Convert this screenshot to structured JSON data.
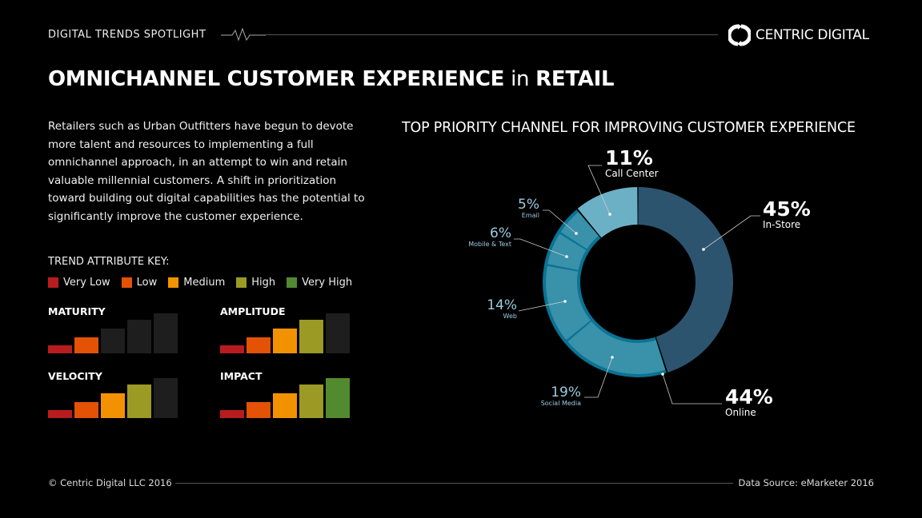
{
  "header": {
    "kicker": "DIGITAL TRENDS SPOTLIGHT",
    "brand": "CENTRIC DIGITAL",
    "logo_icon": "circular-arrows-icon"
  },
  "title": {
    "bold1": "OMNICHANNEL CUSTOMER EXPERIENCE",
    "light": " in ",
    "bold2": "RETAIL"
  },
  "intro": "Retailers such as Urban Outfitters have begun to devote more talent and resources to implementing a full omnichannel approach, in an attempt to win and retain valuable millennial customers. A shift in prioritization toward building out digital capabilities has the potential to significantly improve the customer experience.",
  "key": {
    "title": "TREND ATTRIBUTE KEY:",
    "levels": [
      {
        "label": "Very Low",
        "color": "#b81c1f"
      },
      {
        "label": "Low",
        "color": "#e35205"
      },
      {
        "label": "Medium",
        "color": "#f39200"
      },
      {
        "label": "High",
        "color": "#9a9a24"
      },
      {
        "label": "Very High",
        "color": "#528a30"
      }
    ],
    "inactive_color": "#1e1e1e"
  },
  "metrics": [
    {
      "label": "MATURITY",
      "level": 2
    },
    {
      "label": "AMPLITUDE",
      "level": 4
    },
    {
      "label": "VELOCITY",
      "level": 4
    },
    {
      "label": "IMPACT",
      "level": 5
    }
  ],
  "chart_data": {
    "type": "pie",
    "title": "TOP PRIORITY CHANNEL FOR IMPROVING CUSTOMER EXPERIENCE",
    "donut": true,
    "slices": [
      {
        "label": "In-Store",
        "value": 45,
        "color": "#2d546e",
        "group": null
      },
      {
        "label": "Social Media",
        "value": 19,
        "color": "#3a91aa",
        "group": "Online"
      },
      {
        "label": "Web",
        "value": 14,
        "color": "#3a91aa",
        "group": "Online"
      },
      {
        "label": "Mobile & Text",
        "value": 6,
        "color": "#3a91aa",
        "group": "Online"
      },
      {
        "label": "Email",
        "value": 5,
        "color": "#3a91aa",
        "group": "Online"
      },
      {
        "label": "Call Center",
        "value": 11,
        "color": "#6cb0c6",
        "group": null
      }
    ],
    "groups": [
      {
        "label": "Online",
        "value": 44,
        "border_color": "#0a7393"
      }
    ],
    "value_labels": {
      "in_store": "45%",
      "social": "19%",
      "web": "14%",
      "mobile": "6%",
      "email": "5%",
      "call": "11%",
      "online": "44%"
    }
  },
  "footer": {
    "copyright": "© Centric Digital LLC 2016",
    "source": "Data Source: eMarketer 2016"
  }
}
